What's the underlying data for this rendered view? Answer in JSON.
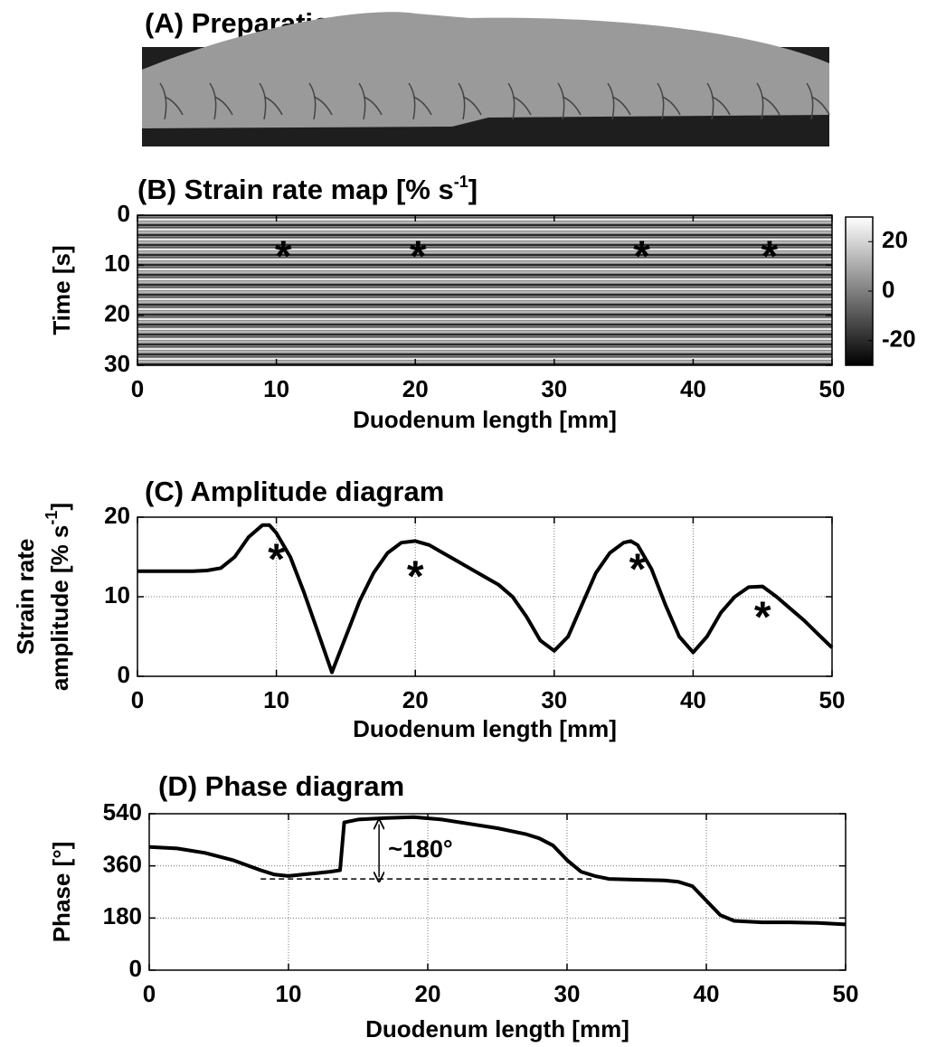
{
  "chart_data": [
    {
      "type": "image",
      "title": "(A) Preparation"
    },
    {
      "type": "heatmap",
      "title": [
        "(B) Strain rate map  [% s",
        "-1",
        "]"
      ],
      "xlabel": "Duodenum length [mm]",
      "ylabel": "Time [s]",
      "xlim": [
        0,
        50
      ],
      "xticks": [
        0,
        10,
        20,
        30,
        40,
        50
      ],
      "ylim": [
        0,
        30
      ],
      "y_inverted": true,
      "yticks": [
        0,
        10,
        20,
        30
      ],
      "colorbar": {
        "zlim": [
          -30,
          30
        ],
        "zticks": [
          20,
          0,
          -20
        ]
      },
      "markers": {
        "label": "*",
        "x": [
          10.5,
          20.2,
          36.3,
          45.5
        ],
        "y": [
          7,
          7,
          7,
          7
        ]
      }
    },
    {
      "type": "line",
      "title": "(C) Amplitude diagram",
      "xlabel": "Duodenum length [mm]",
      "ylabel": [
        "Strain rate",
        "amplitude  [% s",
        "-1",
        "]"
      ],
      "xlim": [
        0,
        50
      ],
      "xticks": [
        0,
        10,
        20,
        30,
        40,
        50
      ],
      "ylim": [
        0,
        20
      ],
      "yticks": [
        0,
        10,
        20
      ],
      "grid": true,
      "color": "#000000",
      "x": [
        0,
        2,
        4,
        5,
        6,
        7,
        8,
        9,
        9.5,
        10,
        11,
        12,
        13,
        14,
        15,
        16,
        17,
        18,
        19,
        20,
        21,
        22,
        23,
        24,
        25,
        26,
        27,
        28,
        29,
        30,
        31,
        32,
        33,
        34,
        35,
        35.5,
        36,
        37,
        38,
        39,
        40,
        41,
        42,
        43,
        44,
        45,
        46,
        47,
        48,
        49,
        50
      ],
      "values": [
        13.2,
        13.2,
        13.2,
        13.3,
        13.6,
        15,
        17.5,
        19,
        19,
        18,
        15,
        10.5,
        5.5,
        0.5,
        5,
        9.5,
        13,
        15.5,
        16.8,
        17,
        16.5,
        15.5,
        14.5,
        13.5,
        12.5,
        11.5,
        10,
        7.5,
        4.5,
        3.2,
        5,
        9,
        13,
        15.5,
        16.8,
        17,
        16.5,
        13.5,
        9,
        5,
        3,
        5,
        8,
        10,
        11.2,
        11.3,
        10,
        8.5,
        7,
        5.3,
        3.6
      ],
      "markers": {
        "label": "*",
        "x": [
          10,
          20,
          36,
          45
        ],
        "y": [
          15.5,
          13.3,
          14.2,
          8.2
        ]
      }
    },
    {
      "type": "line",
      "title": "(D) Phase diagram",
      "xlabel": "Duodenum length [mm]",
      "ylabel": "Phase  [°]",
      "xlim": [
        0,
        50
      ],
      "xticks": [
        0,
        10,
        20,
        30,
        40,
        50
      ],
      "ylim": [
        0,
        540
      ],
      "yticks": [
        0,
        180,
        360,
        540
      ],
      "grid": true,
      "color": "#000000",
      "x": [
        0,
        2,
        4,
        6,
        8,
        9,
        10,
        11,
        12,
        13,
        13.7,
        14,
        15,
        17,
        19,
        21,
        23,
        25,
        27,
        28,
        29,
        30,
        31,
        32,
        33,
        35,
        37,
        38,
        39,
        40,
        41,
        42,
        44,
        46,
        48,
        50
      ],
      "values": [
        425,
        420,
        405,
        380,
        345,
        330,
        325,
        330,
        335,
        340,
        345,
        510,
        520,
        525,
        528,
        520,
        505,
        490,
        470,
        455,
        430,
        380,
        340,
        325,
        315,
        312,
        310,
        305,
        290,
        240,
        190,
        170,
        165,
        165,
        163,
        158
      ],
      "annotation": {
        "text": "~180°",
        "x": 16.5,
        "y": [
          315,
          510
        ]
      },
      "reference_line": {
        "x": [
          8,
          32
        ],
        "y": 315
      }
    }
  ]
}
